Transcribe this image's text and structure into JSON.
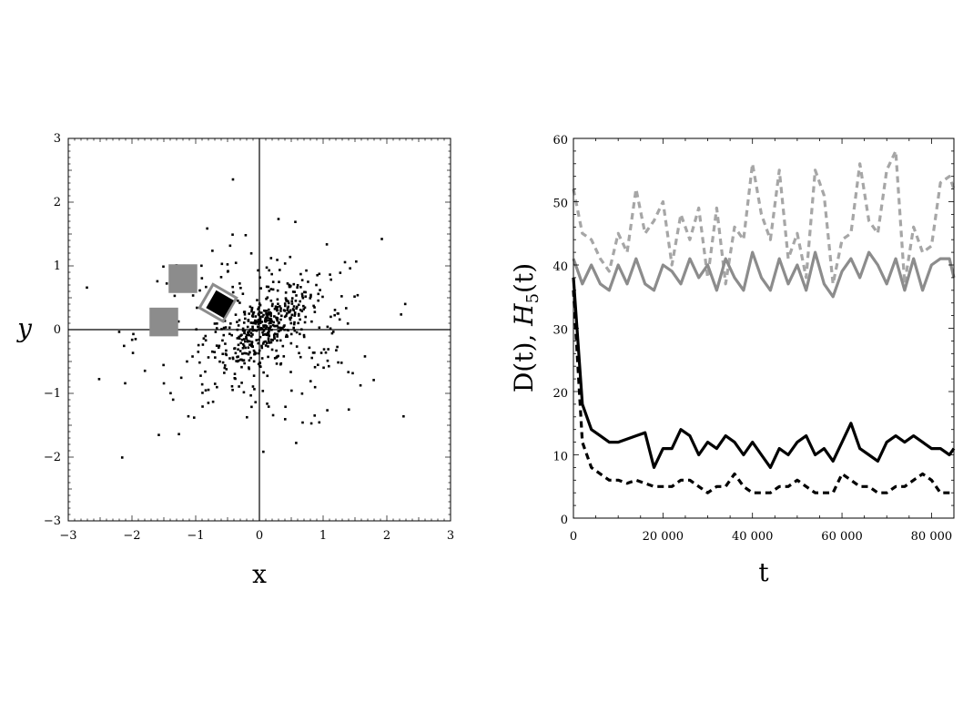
{
  "colors": {
    "black": "#000000",
    "gray": "#8c8c8c",
    "light_gray": "#a6a6a6",
    "background": "#ffffff"
  },
  "chart_data": [
    {
      "type": "scatter",
      "title": "",
      "xlabel": "x",
      "ylabel": "y",
      "xlim": [
        -3,
        3
      ],
      "ylim": [
        -3,
        3
      ],
      "xticks": [
        "-3",
        "-2",
        "-1",
        "0",
        "1",
        "2",
        "3"
      ],
      "yticks": [
        "-3",
        "-2",
        "-1",
        "0",
        "1",
        "2",
        "3"
      ],
      "grid": false,
      "points_note": "approx. 600 scattered points concentrated near origin",
      "overlays": [
        {
          "shape": "square",
          "color": "gray",
          "center": [
            -1.2,
            0.8
          ],
          "size": 0.45
        },
        {
          "shape": "square",
          "color": "gray",
          "center": [
            -1.5,
            0.12
          ],
          "size": 0.45
        },
        {
          "shape": "diamond-outline",
          "color": "gray",
          "center": [
            -0.65,
            0.42
          ],
          "size": 0.6
        },
        {
          "shape": "diamond",
          "color": "black",
          "center": [
            -0.62,
            0.4
          ],
          "size": 0.45
        }
      ]
    },
    {
      "type": "line",
      "title": "",
      "xlabel": "t",
      "ylabel": "D(t), H5(t)",
      "xlim": [
        0,
        85000
      ],
      "ylim": [
        0,
        60
      ],
      "xticks": [
        "0",
        "20 000",
        "40 000",
        "60 000",
        "80 000"
      ],
      "yticks": [
        "0",
        "10",
        "20",
        "30",
        "40",
        "50",
        "60"
      ],
      "grid": false,
      "x": [
        0,
        2000,
        4000,
        6000,
        8000,
        10000,
        12000,
        14000,
        16000,
        18000,
        20000,
        22000,
        24000,
        26000,
        28000,
        30000,
        32000,
        34000,
        36000,
        38000,
        40000,
        42000,
        44000,
        46000,
        48000,
        50000,
        52000,
        54000,
        56000,
        58000,
        60000,
        62000,
        64000,
        66000,
        68000,
        70000,
        72000,
        74000,
        76000,
        78000,
        80000,
        82000,
        84000,
        85000
      ],
      "series": [
        {
          "name": "",
          "style": "dashed",
          "color": "light_gray",
          "values": [
            52,
            45,
            44,
            41,
            39,
            45,
            42,
            52,
            45,
            47,
            50,
            40,
            48,
            44,
            49,
            38,
            49,
            37,
            46,
            44,
            56,
            48,
            44,
            55,
            41,
            45,
            38,
            55,
            51,
            37,
            44,
            45,
            56,
            47,
            45,
            55,
            58,
            37,
            46,
            42,
            43,
            53,
            54,
            52
          ]
        },
        {
          "name": "",
          "style": "solid",
          "color": "gray",
          "values": [
            41,
            37,
            40,
            37,
            36,
            40,
            37,
            41,
            37,
            36,
            40,
            39,
            37,
            41,
            38,
            40,
            36,
            41,
            38,
            36,
            42,
            38,
            36,
            41,
            37,
            40,
            36,
            42,
            37,
            35,
            39,
            41,
            38,
            42,
            40,
            37,
            41,
            36,
            41,
            36,
            40,
            41,
            41,
            38
          ]
        },
        {
          "name": "",
          "style": "solid",
          "color": "black",
          "values": [
            38,
            18,
            14,
            13,
            12,
            12,
            12.5,
            13,
            13.5,
            8,
            11,
            11,
            14,
            13,
            10,
            12,
            11,
            13,
            12,
            10,
            12,
            10,
            8,
            11,
            10,
            12,
            13,
            10,
            11,
            9,
            12,
            15,
            11,
            10,
            9,
            12,
            13,
            12,
            13,
            12,
            11,
            11,
            10,
            11
          ]
        },
        {
          "name": "",
          "style": "dashed",
          "color": "black",
          "values": [
            36,
            12,
            8,
            7,
            6,
            6,
            5.5,
            6,
            5.5,
            5,
            5,
            5,
            6,
            6,
            5,
            4,
            5,
            5,
            7,
            5,
            4,
            4,
            4,
            5,
            5,
            6,
            5,
            4,
            4,
            4,
            7,
            6,
            5,
            5,
            4,
            4,
            5,
            5,
            6,
            7,
            6,
            4,
            4,
            4
          ]
        }
      ]
    }
  ],
  "labels": {
    "left_xlabel": "x",
    "left_ylabel": "y",
    "right_xlabel": "t",
    "right_ylabel_main": "D(t), ",
    "right_ylabel_H": "H",
    "right_ylabel_sub": "5",
    "right_ylabel_tail": "(t)"
  }
}
